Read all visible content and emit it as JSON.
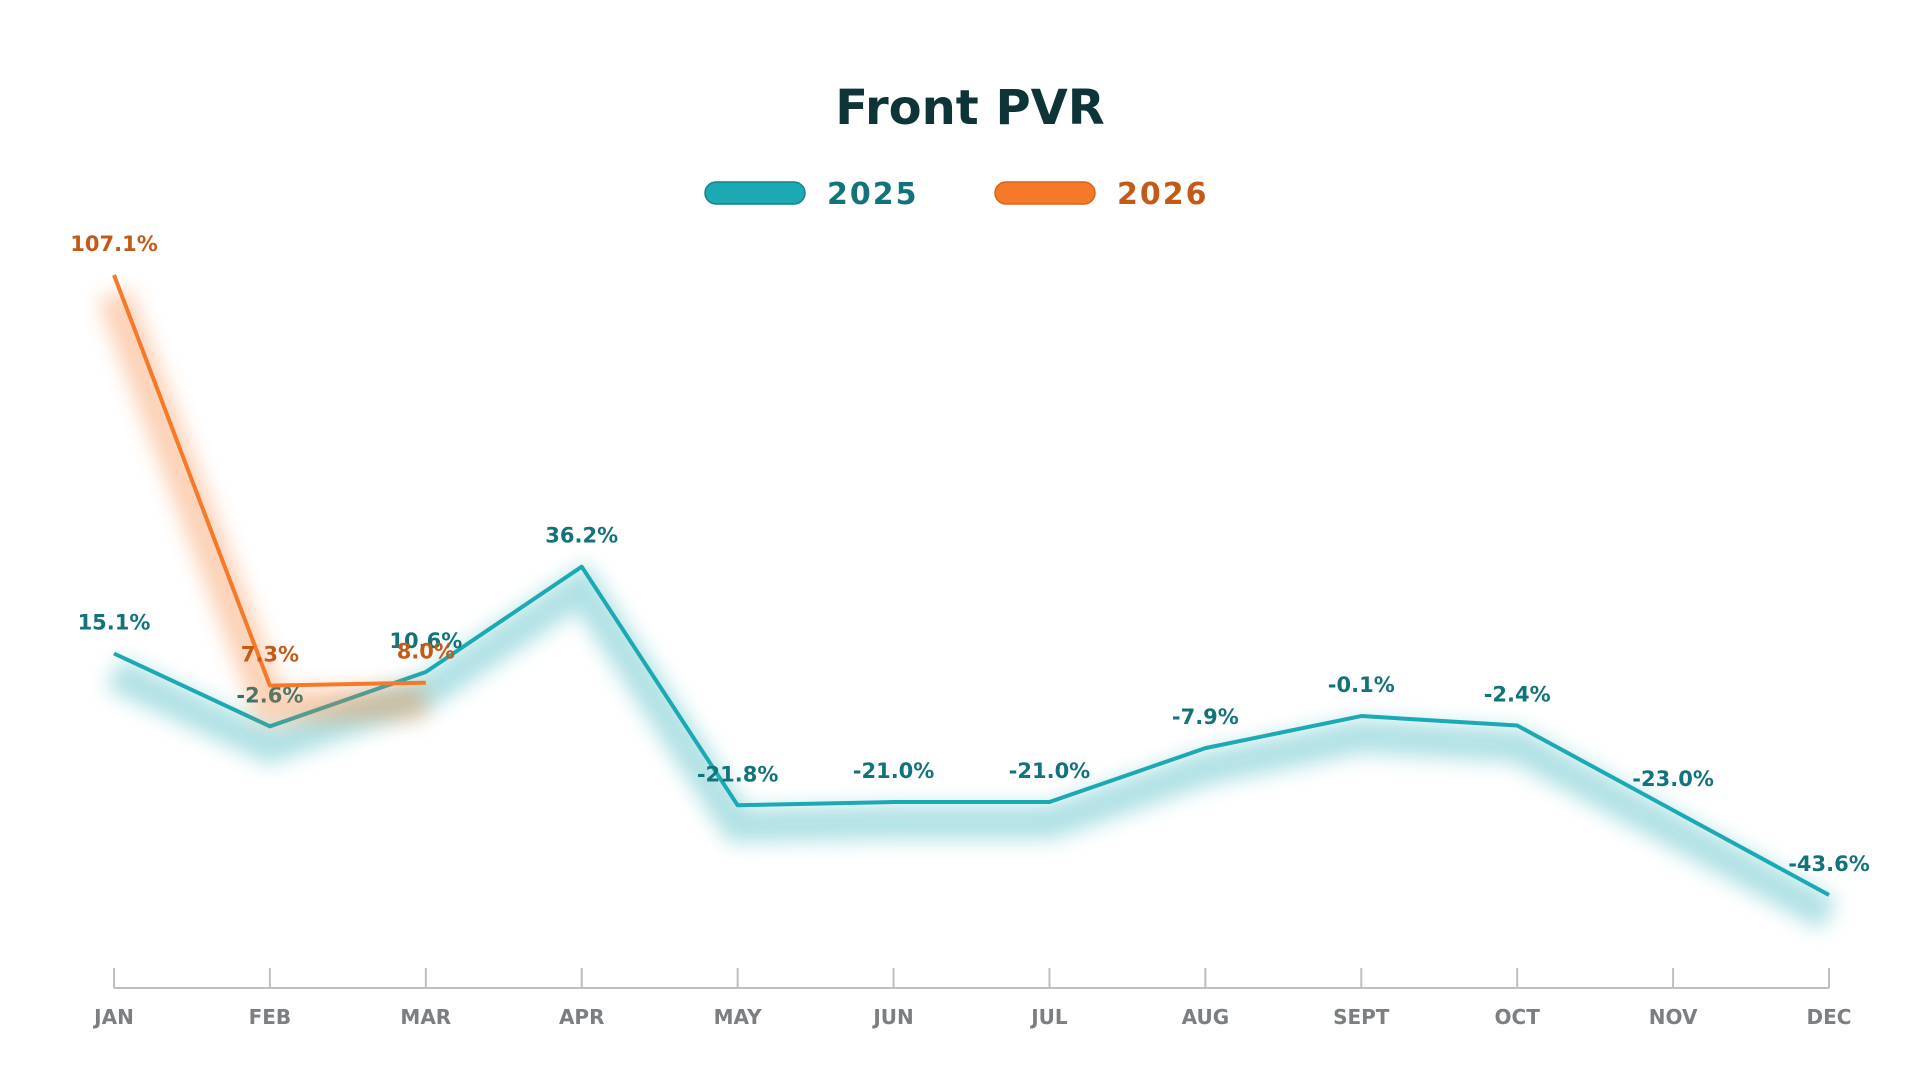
{
  "chart_data": {
    "type": "line",
    "title": "Front PVR",
    "categories": [
      "JAN",
      "FEB",
      "MAR",
      "APR",
      "MAY",
      "JUN",
      "JUL",
      "AUG",
      "SEPT",
      "OCT",
      "NOV",
      "DEC"
    ],
    "series": [
      {
        "name": "2025",
        "color": "#1ba9b3",
        "values": [
          15.1,
          -2.6,
          10.6,
          36.2,
          -21.8,
          -21.0,
          -21.0,
          -7.9,
          -0.1,
          -2.4,
          -23.0,
          -43.6
        ],
        "value_labels": [
          "15.1%",
          "-2.6%",
          "10.6%",
          "36.2%",
          "-21.8%",
          "-21.0%",
          "-21.0%",
          "-7.9%",
          "-0.1%",
          "-2.4%",
          "-23.0%",
          "-43.6%"
        ]
      },
      {
        "name": "2026",
        "color": "#f47a2a",
        "values": [
          107.1,
          7.3,
          8.0,
          null,
          null,
          null,
          null,
          null,
          null,
          null,
          null,
          null
        ],
        "value_labels": [
          "107.1%",
          "7.3%",
          "8.0%",
          null,
          null,
          null,
          null,
          null,
          null,
          null,
          null,
          null
        ]
      }
    ],
    "legend": "top"
  }
}
